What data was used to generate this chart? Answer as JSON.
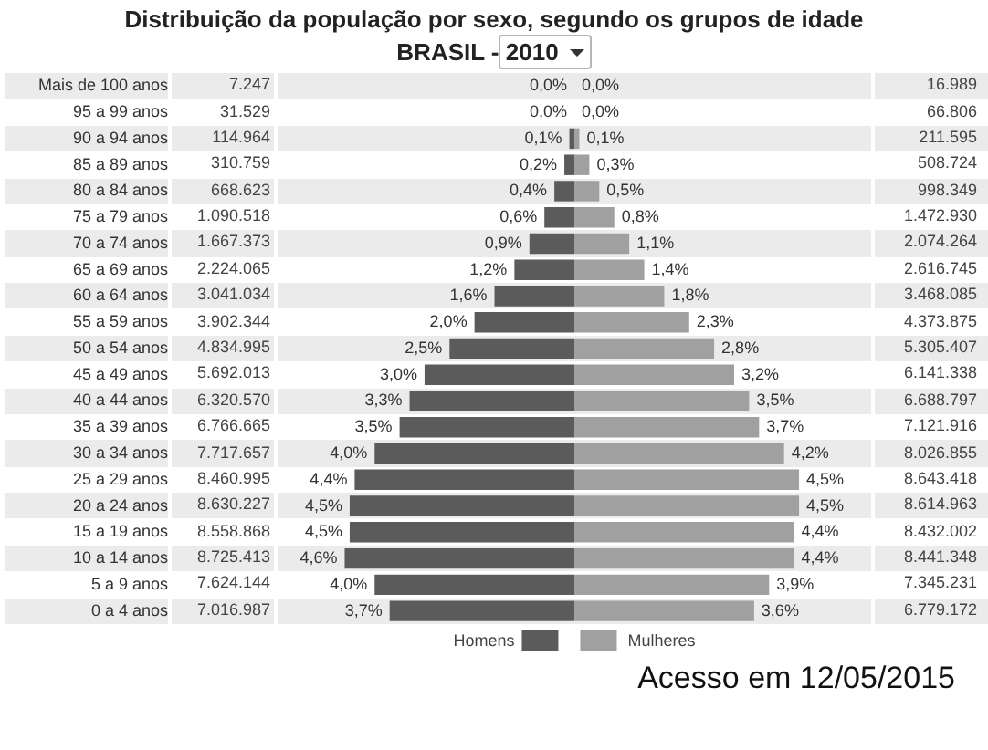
{
  "chart_data": [
    {
      "type": "bar",
      "title": "Distribuição da população por sexo, segundo os grupos de idade",
      "subtitle": "BRASIL - 2010",
      "categories": [
        "Mais de 100 anos",
        "95 a 99 anos",
        "90 a 94 anos",
        "85 a 89 anos",
        "80 a 84 anos",
        "75 a 79 anos",
        "70 a 74 anos",
        "65 a 69 anos",
        "60 a 64 anos",
        "55 a 59 anos",
        "50 a 54 anos",
        "45 a 49 anos",
        "40 a 44 anos",
        "35 a 39 anos",
        "30 a 34 anos",
        "25 a 29 anos",
        "20 a 24 anos",
        "15 a 19 anos",
        "10 a 14 anos",
        "5 a 9 anos",
        "0 a 4 anos"
      ],
      "orientation": "horizontal",
      "stacked": true,
      "series": [
        {
          "name": "Homens",
          "color": "#5b5b5b",
          "values": [
            0.0,
            0.0,
            -0.1,
            -0.2,
            -0.4,
            -0.6,
            -0.9,
            -1.2,
            -1.6,
            -2.0,
            -2.5,
            -3.0,
            -3.3,
            -3.5,
            -4.0,
            -4.4,
            -4.5,
            -4.5,
            -4.6,
            -4.0,
            -3.7
          ]
        },
        {
          "name": "Mulheres",
          "color": "#a0a0a0",
          "values": [
            0.0,
            0.0,
            0.1,
            0.3,
            0.5,
            0.8,
            1.1,
            1.4,
            1.8,
            2.3,
            2.8,
            3.2,
            3.5,
            3.7,
            4.2,
            4.5,
            4.5,
            4.4,
            4.4,
            3.9,
            3.6
          ],
          "value_labels": [
            "0,0%",
            "0,0%",
            "0,1%",
            "0,3%",
            "0,5%",
            "0,8%",
            "1,1%",
            "1,4%",
            "1,8%",
            "2,3%",
            "2,8%",
            "3,2%",
            "3,5%",
            "3,7%",
            "4,2%",
            "4,5%",
            "4,5%",
            "4,4%",
            "4,4%",
            "3,9%",
            "3,6%"
          ]
        }
      ],
      "legend": "bottom",
      "tick_labels": "y",
      "annotations": [
        "Acesso em 12/05/2015",
        {
          "text": "0,0%",
          "x": 0.0,
          "y": "Mais de 100 anos"
        },
        {
          "text": "0,0%",
          "x": 0.0,
          "y": "95 a 99 anos"
        },
        {
          "text": "0,1%",
          "x": -0.1,
          "y": "90 a 94 anos"
        },
        {
          "text": "0,2%",
          "x": -0.2,
          "y": "85 a 89 anos"
        },
        {
          "text": "0,4%",
          "x": -0.4,
          "y": "80 a 84 anos"
        },
        {
          "text": "0,6%",
          "x": -0.6,
          "y": "75 a 79 anos"
        },
        {
          "text": "0,9%",
          "x": -0.9,
          "y": "70 a 74 anos"
        },
        {
          "text": "1,2%",
          "x": -1.2,
          "y": "65 a 69 anos"
        },
        {
          "text": "1,6%",
          "x": -1.6,
          "y": "60 a 64 anos"
        },
        {
          "text": "2,0%",
          "x": -2.0,
          "y": "55 a 59 anos"
        },
        {
          "text": "2,5%",
          "x": -2.5,
          "y": "50 a 54 anos"
        },
        {
          "text": "3,0%",
          "x": -3.0,
          "y": "45 a 49 anos"
        },
        {
          "text": "3,3%",
          "x": -3.3,
          "y": "40 a 44 anos"
        },
        {
          "text": "3,5%",
          "x": -3.5,
          "y": "35 a 39 anos"
        },
        {
          "text": "4,0%",
          "x": -4.0,
          "y": "30 a 34 anos"
        },
        {
          "text": "4,4%",
          "x": -4.4,
          "y": "25 a 29 anos"
        },
        {
          "text": "4,5%",
          "x": -4.5,
          "y": "20 a 24 anos"
        },
        {
          "text": "4,5%",
          "x": -4.5,
          "y": "15 a 19 anos"
        },
        {
          "text": "4,6%",
          "x": -4.6,
          "y": "10 a 14 anos"
        },
        {
          "text": "4,0%",
          "x": -4.0,
          "y": "5 a 9 anos"
        },
        {
          "text": "3,7%",
          "x": -3.7,
          "y": "0 a 4 anos"
        }
      ]
    },
    {
      "type": "other",
      "annotations": [
        "7.247",
        "31.529",
        "114.964",
        "310.759",
        "668.623",
        "1.090.518",
        "1.667.373",
        "2.224.065",
        "3.041.034",
        "3.902.344",
        "4.834.995",
        "5.692.013",
        "6.320.570",
        "6.766.665",
        "7.717.657",
        "8.460.995",
        "8.630.227",
        "8.558.868",
        "8.725.413",
        "7.624.144",
        "7.016.987"
      ]
    },
    {
      "type": "other",
      "annotations": [
        "16.989",
        "66.806",
        "211.595",
        "508.724",
        "998.349",
        "1.472.930",
        "2.074.264",
        "2.616.745",
        "3.468.085",
        "4.373.875",
        "5.305.407",
        "6.141.338",
        "6.688.797",
        "7.121.916",
        "8.026.855",
        "8.643.418",
        "8.614.963",
        "8.432.002",
        "8.441.348",
        "7.345.231",
        "6.779.172"
      ]
    }
  ]
}
